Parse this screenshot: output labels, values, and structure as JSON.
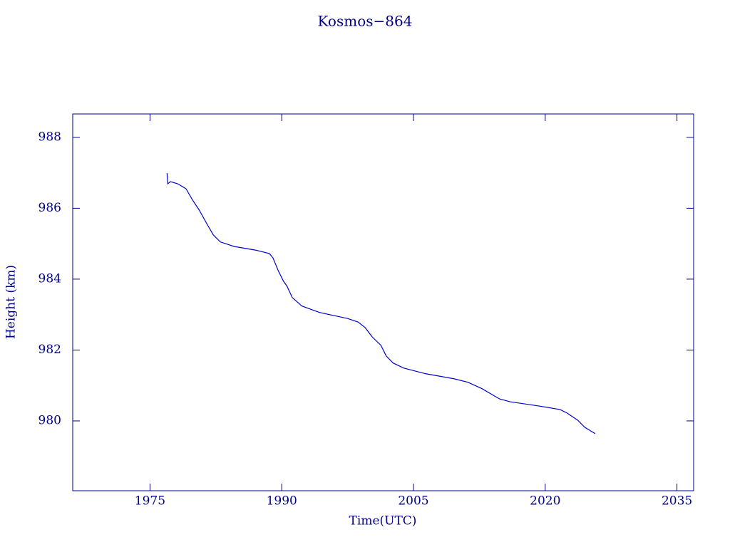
{
  "chart_data": {
    "type": "line",
    "title": "Kosmos−864",
    "x_label": "Time(UTC)",
    "y_label": "Height (km)",
    "xlim": [
      1966.2,
      2036.9
    ],
    "ylim": [
      978.03,
      988.66
    ],
    "xticks": [
      1975,
      1990,
      2005,
      2020,
      2035
    ],
    "yticks": [
      980,
      982,
      984,
      986,
      988
    ],
    "series": [
      {
        "color": "#0000cc",
        "x": [
          1976.94,
          1977.02,
          1977.34,
          1978.15,
          1979.1,
          1979.8,
          1980.6,
          1981.5,
          1982.2,
          1983.0,
          1984.6,
          1987.0,
          1988.6,
          1989.0,
          1989.6,
          1990.2,
          1990.6,
          1991.2,
          1992.3,
          1994.3,
          1997.5,
          1998.7,
          1999.5,
          2000.3,
          2001.3,
          2001.9,
          2002.7,
          2003.9,
          2006.4,
          2009.6,
          2011.2,
          2012.8,
          2014.8,
          2016.0,
          2019.3,
          2021.7,
          2022.5,
          2023.7,
          2024.5,
          2025.7
        ],
        "values": [
          986.99,
          986.69,
          986.75,
          986.69,
          986.55,
          986.25,
          985.95,
          985.55,
          985.25,
          985.05,
          984.92,
          984.82,
          984.72,
          984.6,
          984.24,
          983.94,
          983.8,
          983.48,
          983.24,
          983.06,
          982.89,
          982.79,
          982.63,
          982.37,
          982.13,
          981.83,
          981.63,
          981.49,
          981.33,
          981.19,
          981.09,
          980.91,
          980.62,
          980.54,
          980.42,
          980.32,
          980.22,
          980.02,
          979.82,
          979.64
        ]
      }
    ]
  }
}
